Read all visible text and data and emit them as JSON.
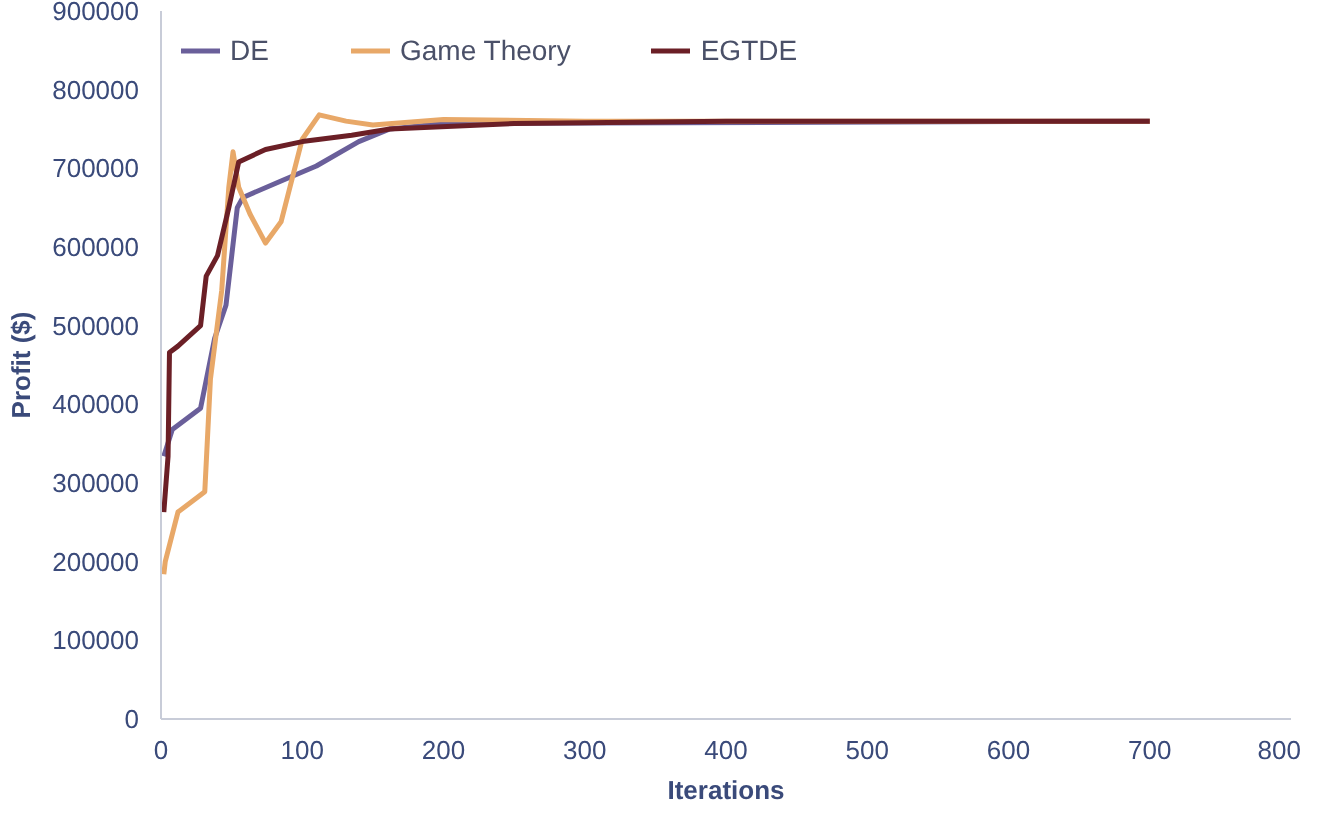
{
  "chart_data": {
    "type": "line",
    "xlabel": "Iterations",
    "ylabel": "Profit ($)",
    "xlim": [
      0,
      800
    ],
    "ylim": [
      0,
      900000
    ],
    "xticks": [
      0,
      100,
      200,
      300,
      400,
      500,
      600,
      700,
      800
    ],
    "yticks": [
      0,
      100000,
      200000,
      300000,
      400000,
      500000,
      600000,
      700000,
      800000,
      900000
    ],
    "grid": false,
    "legend": "top left",
    "marker": "none",
    "line_style": "solid",
    "series": [
      {
        "name": "DE",
        "color": "#6a5f9a",
        "x": [
          2,
          8,
          28,
          38,
          46,
          54,
          58,
          85,
          110,
          140,
          162,
          200,
          700
        ],
        "values": [
          334000,
          368000,
          395000,
          484000,
          526000,
          650000,
          663000,
          684000,
          703000,
          734000,
          750000,
          757000,
          760000
        ]
      },
      {
        "name": "Game Theory",
        "color": "#e8a868",
        "x": [
          2,
          3,
          12,
          31,
          35,
          43,
          48,
          51,
          55,
          63,
          74,
          85,
          100,
          112,
          131,
          150,
          200,
          300,
          400,
          700
        ],
        "values": [
          184000,
          200000,
          263000,
          289000,
          432000,
          545000,
          676000,
          721000,
          676000,
          642000,
          605000,
          632000,
          737000,
          768000,
          760000,
          755000,
          762000,
          760000,
          760000,
          760000
        ]
      },
      {
        "name": "EGTDE",
        "color": "#6b1f26",
        "x": [
          2,
          5,
          6,
          12,
          28,
          32,
          40,
          48,
          55,
          74,
          100,
          135,
          162,
          250,
          400,
          700
        ],
        "values": [
          263000,
          334000,
          466000,
          474000,
          500000,
          563000,
          589000,
          650000,
          708000,
          724000,
          734000,
          742000,
          750000,
          757000,
          760000,
          760000
        ]
      }
    ]
  }
}
